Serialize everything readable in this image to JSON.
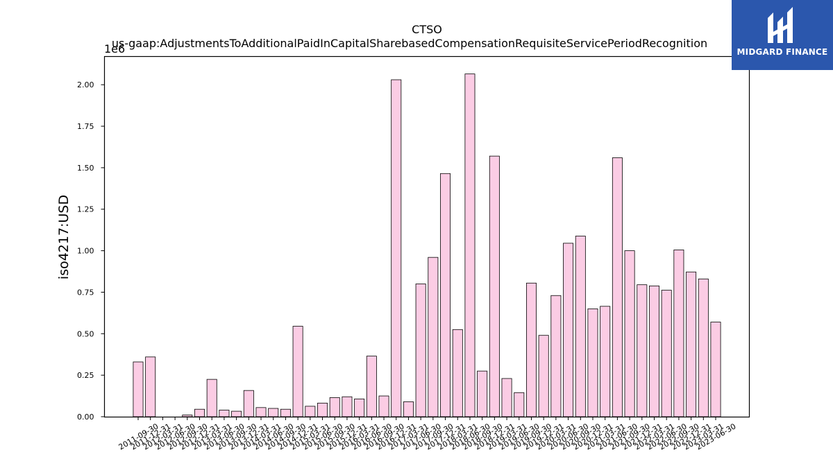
{
  "chart_data": {
    "type": "bar",
    "title": "CTSO",
    "subtitle": "us-gaap:AdjustmentsToAdditionalPaidInCapitalSharebasedCompensationRequisiteServicePeriodRecognition",
    "ylabel": "iso4217:USD",
    "xlabel": "",
    "y_offset_label": "1e6",
    "ylim": [
      0,
      2.17
    ],
    "y_ticks": [
      "0.00",
      "0.25",
      "0.50",
      "0.75",
      "1.00",
      "1.25",
      "1.50",
      "1.75",
      "2.00"
    ],
    "grid": false,
    "bar_color": "#fbcce4",
    "bar_edge_color": "#000000",
    "categories": [
      "2011-09-30",
      "2011-12-31",
      "2012-03-31",
      "2012-06-30",
      "2012-09-30",
      "2012-12-31",
      "2013-03-31",
      "2013-06-30",
      "2013-09-30",
      "2013-12-31",
      "2014-03-31",
      "2014-06-30",
      "2014-09-30",
      "2014-12-31",
      "2015-03-31",
      "2015-06-30",
      "2015-09-30",
      "2015-12-31",
      "2016-03-31",
      "2016-06-30",
      "2016-09-30",
      "2016-12-31",
      "2017-03-31",
      "2017-06-30",
      "2017-09-30",
      "2017-12-31",
      "2018-03-31",
      "2018-06-30",
      "2018-09-30",
      "2018-12-31",
      "2019-03-31",
      "2019-06-30",
      "2019-09-30",
      "2019-12-31",
      "2020-03-31",
      "2020-06-30",
      "2020-09-30",
      "2020-12-31",
      "2021-03-31",
      "2021-06-30",
      "2021-09-30",
      "2021-12-31",
      "2022-03-31",
      "2022-06-30",
      "2022-09-30",
      "2022-12-31",
      "2023-03-31",
      "2023-06-30"
    ],
    "values": [
      0.33,
      0.36,
      0.0,
      0.0,
      0.01,
      0.045,
      0.225,
      0.04,
      0.033,
      0.158,
      0.055,
      0.05,
      0.045,
      0.545,
      0.063,
      0.082,
      0.115,
      0.12,
      0.107,
      0.365,
      0.125,
      2.03,
      0.09,
      0.8,
      0.96,
      1.465,
      0.525,
      2.065,
      0.275,
      1.57,
      0.23,
      0.145,
      0.805,
      0.49,
      0.73,
      1.045,
      1.088,
      0.65,
      0.665,
      1.56,
      1.0,
      0.795,
      0.788,
      0.762,
      1.005,
      0.872,
      0.83,
      0.57
    ]
  },
  "logo": {
    "text": "MIDGARD FINANCE",
    "icon": "midgard-logo-icon"
  }
}
